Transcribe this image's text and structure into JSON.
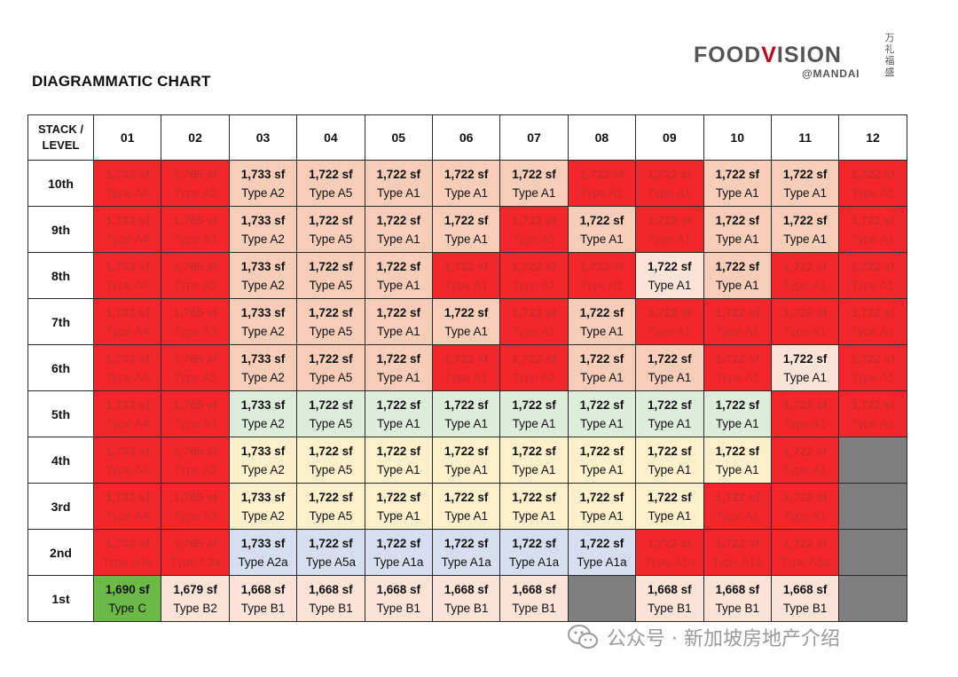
{
  "title": "DIAGRAMMATIC CHART",
  "logo": {
    "main_a": "FOOD",
    "main_v": "V",
    "main_b": "ISION",
    "sub": "@MANDAI",
    "chinese": "万礼福盛"
  },
  "table": {
    "corner_label": [
      "STACK /",
      "LEVEL"
    ],
    "stacks": [
      "01",
      "02",
      "03",
      "04",
      "05",
      "06",
      "07",
      "08",
      "09",
      "10",
      "11",
      "12"
    ],
    "rows": [
      {
        "level": "10th",
        "cells": [
          {
            "sf": "1,733 sf",
            "type": "Type A4",
            "status": "red"
          },
          {
            "sf": "1,765 sf",
            "type": "Type A3",
            "status": "red"
          },
          {
            "sf": "1,733 sf",
            "type": "Type A2",
            "status": "peach"
          },
          {
            "sf": "1,722 sf",
            "type": "Type A5",
            "status": "peach"
          },
          {
            "sf": "1,722 sf",
            "type": "Type A1",
            "status": "peach"
          },
          {
            "sf": "1,722 sf",
            "type": "Type A1",
            "status": "peach"
          },
          {
            "sf": "1,722 sf",
            "type": "Type A1",
            "status": "peach"
          },
          {
            "sf": "1,722 sf",
            "type": "Type A1",
            "status": "red"
          },
          {
            "sf": "1,722 sf",
            "type": "Type A1",
            "status": "red"
          },
          {
            "sf": "1,722 sf",
            "type": "Type A1",
            "status": "peach"
          },
          {
            "sf": "1,722 sf",
            "type": "Type A1",
            "status": "peach"
          },
          {
            "sf": "1,722 sf",
            "type": "Type A1",
            "status": "red"
          }
        ]
      },
      {
        "level": "9th",
        "cells": [
          {
            "sf": "1,733 sf",
            "type": "Type A4",
            "status": "red"
          },
          {
            "sf": "1,765 sf",
            "type": "Type A3",
            "status": "red"
          },
          {
            "sf": "1,733 sf",
            "type": "Type A2",
            "status": "peach"
          },
          {
            "sf": "1,722 sf",
            "type": "Type A5",
            "status": "peach"
          },
          {
            "sf": "1,722 sf",
            "type": "Type A1",
            "status": "peach"
          },
          {
            "sf": "1,722 sf",
            "type": "Type A1",
            "status": "peach"
          },
          {
            "sf": "1,722 sf",
            "type": "Type A1",
            "status": "red"
          },
          {
            "sf": "1,722 sf",
            "type": "Type A1",
            "status": "peach"
          },
          {
            "sf": "1,722 sf",
            "type": "Type A1",
            "status": "red"
          },
          {
            "sf": "1,722 sf",
            "type": "Type A1",
            "status": "peach"
          },
          {
            "sf": "1,722 sf",
            "type": "Type A1",
            "status": "peach"
          },
          {
            "sf": "1,722 sf",
            "type": "Type A1",
            "status": "red"
          }
        ]
      },
      {
        "level": "8th",
        "cells": [
          {
            "sf": "1,733 sf",
            "type": "Type A4",
            "status": "red"
          },
          {
            "sf": "1,765 sf",
            "type": "Type A3",
            "status": "red"
          },
          {
            "sf": "1,733 sf",
            "type": "Type A2",
            "status": "peach"
          },
          {
            "sf": "1,722 sf",
            "type": "Type A5",
            "status": "peach"
          },
          {
            "sf": "1,722 sf",
            "type": "Type A1",
            "status": "peach"
          },
          {
            "sf": "1,722 sf",
            "type": "Type A1",
            "status": "red"
          },
          {
            "sf": "1,722 sf",
            "type": "Type A1",
            "status": "red"
          },
          {
            "sf": "1,722 sf",
            "type": "Type A1",
            "status": "red"
          },
          {
            "sf": "1,722 sf",
            "type": "Type A1",
            "status": "light"
          },
          {
            "sf": "1,722 sf",
            "type": "Type A1",
            "status": "peach"
          },
          {
            "sf": "1,722 sf",
            "type": "Type A1",
            "status": "red"
          },
          {
            "sf": "1,722 sf",
            "type": "Type A1",
            "status": "red"
          }
        ]
      },
      {
        "level": "7th",
        "cells": [
          {
            "sf": "1,733 sf",
            "type": "Type A4",
            "status": "red"
          },
          {
            "sf": "1,765 sf",
            "type": "Type A3",
            "status": "red"
          },
          {
            "sf": "1,733 sf",
            "type": "Type A2",
            "status": "peach"
          },
          {
            "sf": "1,722 sf",
            "type": "Type A5",
            "status": "peach"
          },
          {
            "sf": "1,722 sf",
            "type": "Type A1",
            "status": "peach"
          },
          {
            "sf": "1,722 sf",
            "type": "Type A1",
            "status": "peach"
          },
          {
            "sf": "1,722 sf",
            "type": "Type A1",
            "status": "red"
          },
          {
            "sf": "1,722 sf",
            "type": "Type A1",
            "status": "peach"
          },
          {
            "sf": "1,722 sf",
            "type": "Type A1",
            "status": "red"
          },
          {
            "sf": "1,722 sf",
            "type": "Type A1",
            "status": "red"
          },
          {
            "sf": "1,722 sf",
            "type": "Type A1",
            "status": "red"
          },
          {
            "sf": "1,722 sf",
            "type": "Type A1",
            "status": "red"
          }
        ]
      },
      {
        "level": "6th",
        "cells": [
          {
            "sf": "1,733 sf",
            "type": "Type A4",
            "status": "red"
          },
          {
            "sf": "1,765 sf",
            "type": "Type A3",
            "status": "red"
          },
          {
            "sf": "1,733 sf",
            "type": "Type A2",
            "status": "peach"
          },
          {
            "sf": "1,722 sf",
            "type": "Type A5",
            "status": "peach"
          },
          {
            "sf": "1,722 sf",
            "type": "Type A1",
            "status": "peach"
          },
          {
            "sf": "1,722 sf",
            "type": "Type A1",
            "status": "red"
          },
          {
            "sf": "1,722 sf",
            "type": "Type A1",
            "status": "red"
          },
          {
            "sf": "1,722 sf",
            "type": "Type A1",
            "status": "peach"
          },
          {
            "sf": "1,722 sf",
            "type": "Type A1",
            "status": "peach"
          },
          {
            "sf": "1,722 sf",
            "type": "Type A1",
            "status": "red"
          },
          {
            "sf": "1,722 sf",
            "type": "Type A1",
            "status": "light"
          },
          {
            "sf": "1,722 sf",
            "type": "Type A1",
            "status": "red"
          }
        ]
      },
      {
        "level": "5th",
        "cells": [
          {
            "sf": "1,733 sf",
            "type": "Type A4",
            "status": "red"
          },
          {
            "sf": "1,765 sf",
            "type": "Type A3",
            "status": "red"
          },
          {
            "sf": "1,733 sf",
            "type": "Type A2",
            "status": "green"
          },
          {
            "sf": "1,722 sf",
            "type": "Type A5",
            "status": "green"
          },
          {
            "sf": "1,722 sf",
            "type": "Type A1",
            "status": "green"
          },
          {
            "sf": "1,722 sf",
            "type": "Type A1",
            "status": "green"
          },
          {
            "sf": "1,722 sf",
            "type": "Type A1",
            "status": "green"
          },
          {
            "sf": "1,722 sf",
            "type": "Type A1",
            "status": "green"
          },
          {
            "sf": "1,722 sf",
            "type": "Type A1",
            "status": "green"
          },
          {
            "sf": "1,722 sf",
            "type": "Type A1",
            "status": "green"
          },
          {
            "sf": "1,722 sf",
            "type": "Type A1",
            "status": "red"
          },
          {
            "sf": "1,722 sf",
            "type": "Type A1",
            "status": "red"
          }
        ]
      },
      {
        "level": "4th",
        "cells": [
          {
            "sf": "1,733 sf",
            "type": "Type A4",
            "status": "red"
          },
          {
            "sf": "1,765 sf",
            "type": "Type A3",
            "status": "red"
          },
          {
            "sf": "1,733 sf",
            "type": "Type A2",
            "status": "yellow"
          },
          {
            "sf": "1,722 sf",
            "type": "Type A5",
            "status": "yellow"
          },
          {
            "sf": "1,722 sf",
            "type": "Type A1",
            "status": "yellow"
          },
          {
            "sf": "1,722 sf",
            "type": "Type A1",
            "status": "yellow"
          },
          {
            "sf": "1,722 sf",
            "type": "Type A1",
            "status": "yellow"
          },
          {
            "sf": "1,722 sf",
            "type": "Type A1",
            "status": "yellow"
          },
          {
            "sf": "1,722 sf",
            "type": "Type A1",
            "status": "yellow"
          },
          {
            "sf": "1,722 sf",
            "type": "Type A1",
            "status": "yellow"
          },
          {
            "sf": "1,722 sf",
            "type": "Type A1",
            "status": "red"
          },
          {
            "sf": "",
            "type": "",
            "status": "gray"
          }
        ]
      },
      {
        "level": "3rd",
        "cells": [
          {
            "sf": "1,733 sf",
            "type": "Type A4",
            "status": "red"
          },
          {
            "sf": "1,765 sf",
            "type": "Type A3",
            "status": "red"
          },
          {
            "sf": "1,733 sf",
            "type": "Type A2",
            "status": "yellow"
          },
          {
            "sf": "1,722 sf",
            "type": "Type A5",
            "status": "yellow"
          },
          {
            "sf": "1,722 sf",
            "type": "Type A1",
            "status": "yellow"
          },
          {
            "sf": "1,722 sf",
            "type": "Type A1",
            "status": "yellow"
          },
          {
            "sf": "1,722 sf",
            "type": "Type A1",
            "status": "yellow"
          },
          {
            "sf": "1,722 sf",
            "type": "Type A1",
            "status": "yellow"
          },
          {
            "sf": "1,722 sf",
            "type": "Type A1",
            "status": "yellow"
          },
          {
            "sf": "1,722 sf",
            "type": "Type A1",
            "status": "red"
          },
          {
            "sf": "1,722 sf",
            "type": "Type A1",
            "status": "red"
          },
          {
            "sf": "",
            "type": "",
            "status": "gray"
          }
        ]
      },
      {
        "level": "2nd",
        "cells": [
          {
            "sf": "1,733 sf",
            "type": "Type A4a",
            "status": "red"
          },
          {
            "sf": "1,765 sf",
            "type": "Type A3a",
            "status": "red"
          },
          {
            "sf": "1,733 sf",
            "type": "Type A2a",
            "status": "blue"
          },
          {
            "sf": "1,722 sf",
            "type": "Type A5a",
            "status": "blue"
          },
          {
            "sf": "1,722 sf",
            "type": "Type A1a",
            "status": "blue"
          },
          {
            "sf": "1,722 sf",
            "type": "Type A1a",
            "status": "blue"
          },
          {
            "sf": "1,722 sf",
            "type": "Type A1a",
            "status": "blue"
          },
          {
            "sf": "1,722 sf",
            "type": "Type A1a",
            "status": "blue"
          },
          {
            "sf": "1,722 sf",
            "type": "Type A1a",
            "status": "red"
          },
          {
            "sf": "1,722 sf",
            "type": "Type A1a",
            "status": "red"
          },
          {
            "sf": "1,722 sf",
            "type": "Type A1a",
            "status": "red"
          },
          {
            "sf": "",
            "type": "",
            "status": "gray"
          }
        ]
      },
      {
        "level": "1st",
        "cells": [
          {
            "sf": "1,690 sf",
            "type": "Type C",
            "status": "lime"
          },
          {
            "sf": "1,679 sf",
            "type": "Type B2",
            "status": "light"
          },
          {
            "sf": "1,668 sf",
            "type": "Type B1",
            "status": "light"
          },
          {
            "sf": "1,668 sf",
            "type": "Type B1",
            "status": "light"
          },
          {
            "sf": "1,668 sf",
            "type": "Type B1",
            "status": "light"
          },
          {
            "sf": "1,668 sf",
            "type": "Type B1",
            "status": "light"
          },
          {
            "sf": "1,668 sf",
            "type": "Type B1",
            "status": "light"
          },
          {
            "sf": "",
            "type": "",
            "status": "gray"
          },
          {
            "sf": "1,668 sf",
            "type": "Type B1",
            "status": "light"
          },
          {
            "sf": "1,668 sf",
            "type": "Type B1",
            "status": "light"
          },
          {
            "sf": "1,668 sf",
            "type": "Type B1",
            "status": "light"
          },
          {
            "sf": "",
            "type": "",
            "status": "gray"
          }
        ]
      }
    ]
  },
  "status_colors": {
    "red": "#f3262b",
    "peach": "#f5cdb8",
    "green": "#deecdc",
    "yellow": "#fcefcb",
    "blue": "#d7deef",
    "light": "#fbe4d7",
    "lime": "#6bba48",
    "gray": "#7f7f7f"
  },
  "watermark": {
    "icon": "wechat-icon",
    "text": "公众号 · 新加坡房地产介绍"
  }
}
